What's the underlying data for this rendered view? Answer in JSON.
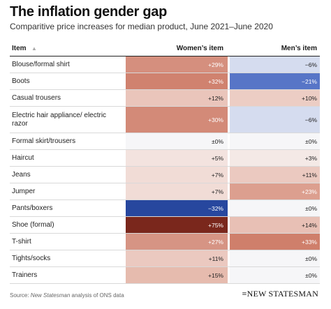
{
  "title": "The inflation gender gap",
  "subtitle": "Comparitive price increases for median product, June 2021–June 2020",
  "header": {
    "item": "Item",
    "women": "Women’s item",
    "men": "Men’s item",
    "sort_icon": "sort-ascending-icon"
  },
  "source": {
    "prefix": "Source: ",
    "publication": "New Statesman",
    "suffix": " analysis of ONS data"
  },
  "brand": "≡NEW STATESMAN",
  "chart_data": {
    "type": "table",
    "columns": [
      "Item",
      "Women’s item",
      "Men’s item"
    ],
    "rows": [
      {
        "item": "Blouse/formal shirt",
        "women": 29,
        "men": -6,
        "women_label": "+29%",
        "men_label": "−6%",
        "women_color": "#d58f7e",
        "men_color": "#d5dcef"
      },
      {
        "item": "Boots",
        "women": 32,
        "men": -21,
        "women_label": "+32%",
        "men_label": "−21%",
        "women_color": "#d0826f",
        "men_color": "#5775c7"
      },
      {
        "item": "Casual trousers",
        "women": 12,
        "men": 10,
        "women_label": "+12%",
        "men_label": "+10%",
        "women_color": "#eac5bb",
        "men_color": "#eccdc4"
      },
      {
        "item": "Electric hair appliance/ electric razor",
        "women": 30,
        "men": -6,
        "women_label": "+30%",
        "men_label": "−6%",
        "women_color": "#d38a78",
        "men_color": "#d5dcef"
      },
      {
        "item": "Formal skirt/trousers",
        "women": 0,
        "men": 0,
        "women_label": "±0%",
        "men_label": "±0%",
        "women_color": "#f6f6f8",
        "men_color": "#f6f6f8"
      },
      {
        "item": "Haircut",
        "women": 5,
        "men": 3,
        "women_label": "+5%",
        "men_label": "+3%",
        "women_color": "#f3e3df",
        "men_color": "#f4e9e6"
      },
      {
        "item": "Jeans",
        "women": 7,
        "men": 11,
        "women_label": "+7%",
        "men_label": "+11%",
        "women_color": "#f1dcd6",
        "men_color": "#ebc9c0"
      },
      {
        "item": "Jumper",
        "women": 7,
        "men": 23,
        "women_label": "+7%",
        "men_label": "+23%",
        "women_color": "#f1dcd6",
        "men_color": "#dc9f8f"
      },
      {
        "item": "Pants/boxers",
        "women": -32,
        "men": 0,
        "women_label": "−32%",
        "men_label": "±0%",
        "women_color": "#27479e",
        "men_color": "#f6f6f8"
      },
      {
        "item": "Shoe (formal)",
        "women": 75,
        "men": 14,
        "women_label": "+75%",
        "men_label": "+14%",
        "women_color": "#7a271c",
        "men_color": "#e8c0b5"
      },
      {
        "item": "T-shirt",
        "women": 27,
        "men": 33,
        "women_label": "+27%",
        "men_label": "+33%",
        "women_color": "#d69484",
        "men_color": "#cf7f6b"
      },
      {
        "item": "Tights/socks",
        "women": 11,
        "men": 0,
        "women_label": "+11%",
        "men_label": "±0%",
        "women_color": "#ebc9c0",
        "men_color": "#f6f6f8"
      },
      {
        "item": "Trainers",
        "women": 15,
        "men": 0,
        "women_label": "+15%",
        "men_label": "±0%",
        "women_color": "#e6bbae",
        "men_color": "#f6f6f8"
      }
    ]
  }
}
